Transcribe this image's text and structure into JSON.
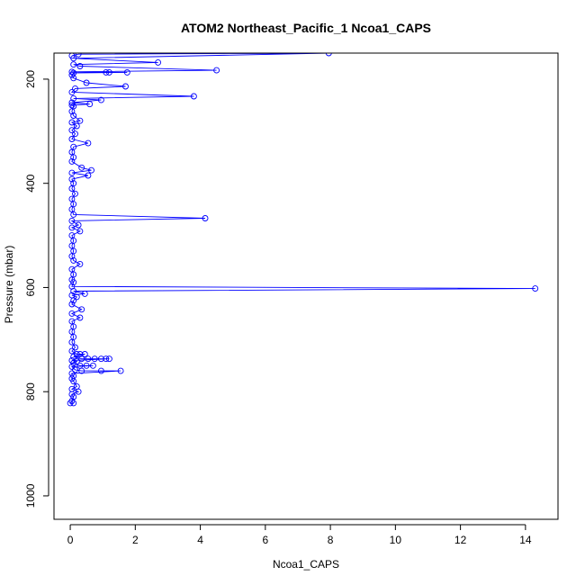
{
  "chart_data": {
    "type": "scatter",
    "title": "ATOM2 Northeast_Pacific_1 Ncoa1_CAPS",
    "xlabel": "Ncoa1_CAPS",
    "ylabel": "Pressure (mbar)",
    "xlim": [
      -0.5,
      15
    ],
    "ylim": [
      1045,
      150
    ],
    "y_inverted": true,
    "x_ticks": [
      0,
      2,
      4,
      6,
      8,
      10,
      12,
      14
    ],
    "y_ticks": [
      200,
      400,
      600,
      800,
      1000
    ],
    "grid": false,
    "legend": "none",
    "colors": {
      "series": "#0000ff",
      "axis": "#000000"
    },
    "series": [
      {
        "marker": "open-circle",
        "line": true,
        "points": [
          [
            0.05,
            155
          ],
          [
            0.25,
            152
          ],
          [
            7.95,
            150
          ],
          [
            0.1,
            160
          ],
          [
            2.7,
            168
          ],
          [
            0.1,
            172
          ],
          [
            0.3,
            175
          ],
          [
            4.5,
            183
          ],
          [
            0.05,
            186
          ],
          [
            1.1,
            187
          ],
          [
            1.2,
            187
          ],
          [
            1.75,
            187
          ],
          [
            0.1,
            188
          ],
          [
            0.05,
            192
          ],
          [
            0.1,
            198
          ],
          [
            0.5,
            207
          ],
          [
            1.7,
            214
          ],
          [
            0.15,
            218
          ],
          [
            0.05,
            225
          ],
          [
            3.8,
            233
          ],
          [
            0.1,
            237
          ],
          [
            0.95,
            240
          ],
          [
            0.05,
            245
          ],
          [
            0.6,
            248
          ],
          [
            0.05,
            250
          ],
          [
            0.1,
            252
          ],
          [
            0.05,
            262
          ],
          [
            0.1,
            270
          ],
          [
            0.3,
            280
          ],
          [
            0.05,
            283
          ],
          [
            0.2,
            290
          ],
          [
            0.05,
            298
          ],
          [
            0.15,
            305
          ],
          [
            0.05,
            315
          ],
          [
            0.55,
            323
          ],
          [
            0.1,
            330
          ],
          [
            0.05,
            340
          ],
          [
            0.1,
            350
          ],
          [
            0.05,
            358
          ],
          [
            0.35,
            370
          ],
          [
            0.65,
            375
          ],
          [
            0.05,
            380
          ],
          [
            0.55,
            385
          ],
          [
            0.05,
            392
          ],
          [
            0.1,
            400
          ],
          [
            0.05,
            410
          ],
          [
            0.15,
            420
          ],
          [
            0.05,
            430
          ],
          [
            0.1,
            440
          ],
          [
            0.05,
            450
          ],
          [
            0.1,
            460
          ],
          [
            4.15,
            467
          ],
          [
            0.05,
            472
          ],
          [
            0.25,
            480
          ],
          [
            0.05,
            485
          ],
          [
            0.3,
            492
          ],
          [
            0.05,
            500
          ],
          [
            0.1,
            510
          ],
          [
            0.05,
            520
          ],
          [
            0.1,
            530
          ],
          [
            0.05,
            540
          ],
          [
            0.1,
            548
          ],
          [
            0.3,
            555
          ],
          [
            0.05,
            565
          ],
          [
            0.1,
            575
          ],
          [
            0.05,
            585
          ],
          [
            0.1,
            590
          ],
          [
            0.05,
            598
          ],
          [
            14.3,
            602
          ],
          [
            0.1,
            607
          ],
          [
            0.45,
            612
          ],
          [
            0.05,
            615
          ],
          [
            0.2,
            618
          ],
          [
            0.1,
            625
          ],
          [
            0.05,
            632
          ],
          [
            0.35,
            642
          ],
          [
            0.05,
            650
          ],
          [
            0.3,
            658
          ],
          [
            0.05,
            665
          ],
          [
            0.1,
            675
          ],
          [
            0.05,
            685
          ],
          [
            0.1,
            695
          ],
          [
            0.05,
            705
          ],
          [
            0.15,
            715
          ],
          [
            0.05,
            722
          ],
          [
            0.2,
            728
          ],
          [
            0.3,
            728
          ],
          [
            0.45,
            728
          ],
          [
            0.1,
            733
          ],
          [
            0.35,
            737
          ],
          [
            0.55,
            737
          ],
          [
            0.75,
            737
          ],
          [
            0.95,
            737
          ],
          [
            1.1,
            737
          ],
          [
            1.2,
            737
          ],
          [
            0.05,
            740
          ],
          [
            0.2,
            742
          ],
          [
            0.1,
            745
          ],
          [
            0.3,
            750
          ],
          [
            0.5,
            750
          ],
          [
            0.7,
            750
          ],
          [
            0.05,
            752
          ],
          [
            0.15,
            758
          ],
          [
            0.35,
            760
          ],
          [
            0.95,
            760
          ],
          [
            1.55,
            760
          ],
          [
            0.05,
            765
          ],
          [
            0.1,
            770
          ],
          [
            0.05,
            775
          ],
          [
            0.1,
            780
          ],
          [
            0.2,
            790
          ],
          [
            0.05,
            795
          ],
          [
            0.25,
            800
          ],
          [
            0.05,
            805
          ],
          [
            0.1,
            810
          ],
          [
            0.05,
            818
          ],
          [
            0.0,
            822
          ],
          [
            0.1,
            822
          ]
        ]
      }
    ]
  }
}
